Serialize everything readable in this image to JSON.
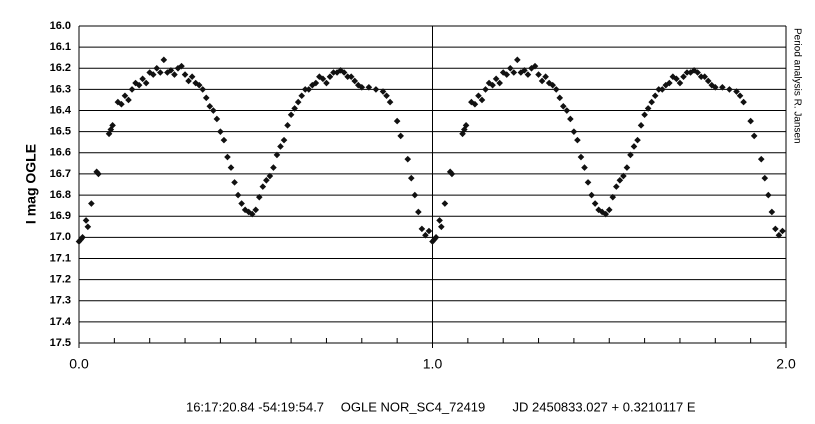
{
  "chart_data": {
    "type": "scatter",
    "y_label": "I mag OGLE",
    "side_note": "Period analysis R. Jansen",
    "caption": [
      "16:17:20.84 -54:19:54.7",
      "OGLE NOR_SC4_72419",
      "JD 2450833.027 + 0.3210117 E"
    ],
    "color": "#111111",
    "y_inverted": true,
    "grid": true,
    "xlim": [
      0,
      2
    ],
    "ylim": [
      16,
      17.5
    ],
    "xticks": [
      {
        "value": 0,
        "label": "0.0"
      },
      {
        "value": 1,
        "label": "1.0"
      },
      {
        "value": 2,
        "label": "2.0"
      }
    ],
    "xminorticks": [
      0.1,
      0.2,
      0.3,
      0.4,
      0.5,
      0.6,
      0.7,
      0.8,
      0.9,
      1.1,
      1.2,
      1.3,
      1.4,
      1.5,
      1.6,
      1.7,
      1.8,
      1.9
    ],
    "yticks": [
      {
        "value": 16,
        "label": "16.0"
      },
      16.1,
      16.2,
      16.3,
      16.4,
      16.5,
      16.6,
      16.7,
      16.8,
      16.9,
      {
        "value": 17,
        "label": "17.0"
      },
      17.1,
      17.2,
      17.3,
      17.4,
      17.5
    ],
    "x": [
      0.0,
      0.005,
      0.01,
      0.02,
      0.025,
      0.035,
      0.05,
      0.055,
      0.085,
      0.09,
      0.095,
      0.11,
      0.12,
      0.13,
      0.14,
      0.15,
      0.16,
      0.17,
      0.18,
      0.19,
      0.2,
      0.21,
      0.22,
      0.23,
      0.24,
      0.25,
      0.26,
      0.27,
      0.28,
      0.29,
      0.3,
      0.31,
      0.32,
      0.33,
      0.34,
      0.35,
      0.36,
      0.37,
      0.38,
      0.39,
      0.4,
      0.41,
      0.42,
      0.43,
      0.44,
      0.45,
      0.46,
      0.47,
      0.48,
      0.49,
      0.5,
      0.51,
      0.52,
      0.53,
      0.54,
      0.55,
      0.56,
      0.57,
      0.58,
      0.59,
      0.6,
      0.61,
      0.62,
      0.63,
      0.64,
      0.65,
      0.66,
      0.67,
      0.68,
      0.69,
      0.7,
      0.71,
      0.72,
      0.73,
      0.74,
      0.75,
      0.76,
      0.77,
      0.78,
      0.79,
      0.8,
      0.82,
      0.84,
      0.86,
      0.87,
      0.88,
      0.9,
      0.91,
      0.93,
      0.94,
      0.95,
      0.96,
      0.97,
      0.98,
      0.99,
      1.0,
      1.005,
      1.01,
      1.02,
      1.025,
      1.035,
      1.05,
      1.055,
      1.085,
      1.09,
      1.095,
      1.11,
      1.12,
      1.13,
      1.14,
      1.15,
      1.16,
      1.17,
      1.18,
      1.19,
      1.2,
      1.21,
      1.22,
      1.23,
      1.24,
      1.25,
      1.26,
      1.27,
      1.28,
      1.29,
      1.3,
      1.31,
      1.32,
      1.33,
      1.34,
      1.35,
      1.36,
      1.37,
      1.38,
      1.39,
      1.4,
      1.41,
      1.42,
      1.43,
      1.44,
      1.45,
      1.46,
      1.47,
      1.48,
      1.49,
      1.5,
      1.51,
      1.52,
      1.53,
      1.54,
      1.55,
      1.56,
      1.57,
      1.58,
      1.59,
      1.6,
      1.61,
      1.62,
      1.63,
      1.64,
      1.65,
      1.66,
      1.67,
      1.68,
      1.69,
      1.7,
      1.71,
      1.72,
      1.73,
      1.74,
      1.75,
      1.76,
      1.77,
      1.78,
      1.79,
      1.8,
      1.82,
      1.84,
      1.86,
      1.87,
      1.88,
      1.9,
      1.91,
      1.93,
      1.94,
      1.95,
      1.96,
      1.97,
      1.98,
      1.99
    ],
    "values": [
      17.02,
      17.01,
      17.0,
      16.92,
      16.95,
      16.84,
      16.69,
      16.7,
      16.51,
      16.49,
      16.47,
      16.36,
      16.37,
      16.33,
      16.35,
      16.3,
      16.27,
      16.28,
      16.25,
      16.27,
      16.22,
      16.23,
      16.2,
      16.22,
      16.16,
      16.22,
      16.21,
      16.23,
      16.2,
      16.19,
      16.23,
      16.26,
      16.24,
      16.27,
      16.28,
      16.3,
      16.34,
      16.38,
      16.4,
      16.44,
      16.5,
      16.54,
      16.62,
      16.67,
      16.74,
      16.8,
      16.84,
      16.87,
      16.88,
      16.89,
      16.87,
      16.81,
      16.76,
      16.73,
      16.71,
      16.67,
      16.61,
      16.57,
      16.54,
      16.47,
      16.42,
      16.39,
      16.36,
      16.33,
      16.3,
      16.3,
      16.28,
      16.27,
      16.24,
      16.25,
      16.27,
      16.24,
      16.22,
      16.22,
      16.21,
      16.22,
      16.24,
      16.24,
      16.26,
      16.28,
      16.29,
      16.29,
      16.3,
      16.31,
      16.33,
      16.36,
      16.45,
      16.52,
      16.63,
      16.72,
      16.8,
      16.88,
      16.96,
      16.99,
      16.97,
      17.02,
      17.01,
      17.0,
      16.92,
      16.95,
      16.84,
      16.69,
      16.7,
      16.51,
      16.49,
      16.47,
      16.36,
      16.37,
      16.33,
      16.35,
      16.3,
      16.27,
      16.28,
      16.25,
      16.27,
      16.22,
      16.23,
      16.2,
      16.22,
      16.16,
      16.22,
      16.21,
      16.23,
      16.2,
      16.19,
      16.23,
      16.26,
      16.24,
      16.27,
      16.28,
      16.3,
      16.34,
      16.38,
      16.4,
      16.44,
      16.5,
      16.54,
      16.62,
      16.67,
      16.74,
      16.8,
      16.84,
      16.87,
      16.88,
      16.89,
      16.87,
      16.81,
      16.76,
      16.73,
      16.71,
      16.67,
      16.61,
      16.57,
      16.54,
      16.47,
      16.42,
      16.39,
      16.36,
      16.33,
      16.3,
      16.3,
      16.28,
      16.27,
      16.24,
      16.25,
      16.27,
      16.24,
      16.22,
      16.22,
      16.21,
      16.22,
      16.24,
      16.24,
      16.26,
      16.28,
      16.29,
      16.29,
      16.3,
      16.31,
      16.33,
      16.36,
      16.45,
      16.52,
      16.63,
      16.72,
      16.8,
      16.88,
      16.96,
      16.99,
      16.97
    ]
  }
}
